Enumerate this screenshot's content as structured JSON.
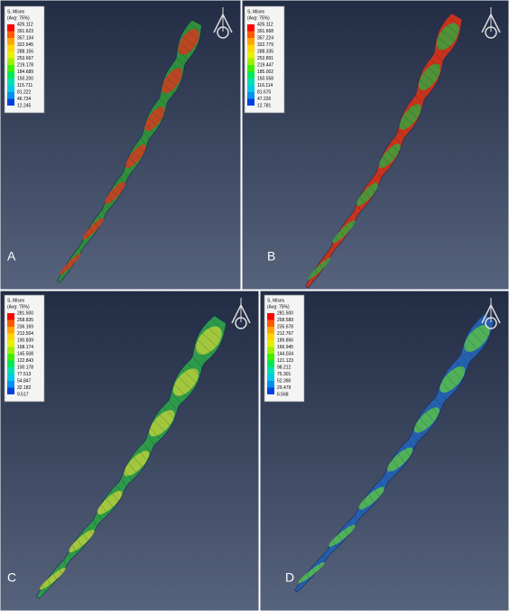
{
  "panels": [
    {
      "label": "A",
      "legend_title": "S, Mises",
      "legend_subtitle": "(Avg: 75%)",
      "legend_values": [
        "426.112",
        "391.623",
        "357.134",
        "322.645",
        "288.156",
        "253.667",
        "219.178",
        "184.689",
        "150.200",
        "115.711",
        "81.222",
        "46.734",
        "12.245"
      ]
    },
    {
      "label": "B",
      "legend_title": "S, Mises",
      "legend_subtitle": "(Avg: 75%)",
      "legend_values": [
        "426.112",
        "391.668",
        "357.224",
        "322.779",
        "288.335",
        "253.891",
        "219.447",
        "185.002",
        "150.558",
        "116.114",
        "81.670",
        "47.226",
        "12.781"
      ]
    },
    {
      "label": "C",
      "legend_title": "S, Mises",
      "legend_subtitle": "(Avg: 75%)",
      "legend_values": [
        "281.500",
        "258.835",
        "236.169",
        "213.504",
        "190.839",
        "168.174",
        "145.508",
        "122.843",
        "100.178",
        "77.513",
        "54.847",
        "32.182",
        "9.517"
      ]
    },
    {
      "label": "D",
      "legend_title": "S, Mises",
      "legend_subtitle": "(Avg: 75%)",
      "legend_values": [
        "281.500",
        "258.589",
        "235.678",
        "212.767",
        "189.856",
        "166.945",
        "144.034",
        "121.123",
        "98.212",
        "75.301",
        "52.390",
        "29.479",
        "6.568"
      ]
    }
  ]
}
